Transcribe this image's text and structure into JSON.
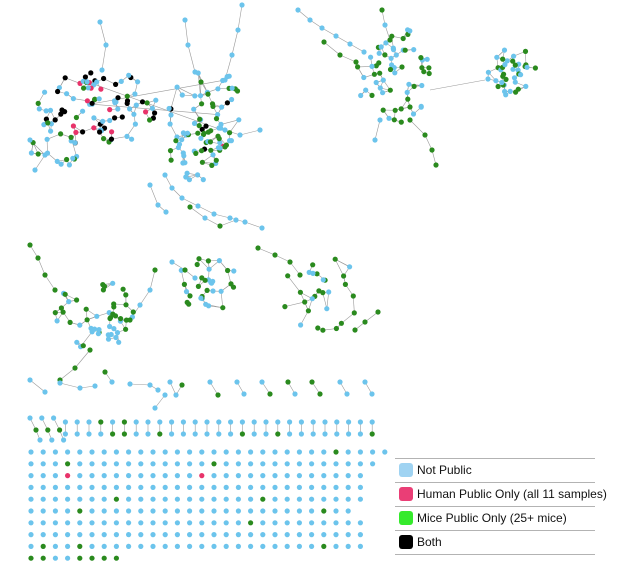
{
  "colors": {
    "not_public": "#6cc4ec",
    "human": "#e8336a",
    "mice": "#2a8a1e",
    "both": "#000000",
    "edge": "#9a9a9a",
    "legend_not_public": "#9fd3f2",
    "legend_human": "#ea3e76",
    "legend_mice": "#35ea2c",
    "legend_both": "#000000"
  },
  "legend": {
    "items": [
      {
        "label": "Not Public",
        "color_key": "legend_not_public",
        "icon": "light-blue-square"
      },
      {
        "label": "Human Public Only (all 11 samples)",
        "color_key": "legend_human",
        "icon": "pink-square"
      },
      {
        "label": "Mice Public Only (25+ mice)",
        "color_key": "legend_mice",
        "icon": "green-square"
      },
      {
        "label": "Both",
        "color_key": "legend_both",
        "icon": "black-square"
      }
    ]
  },
  "grid_nodes": {
    "rows": [
      "bbbbbbbbbbbbbbbbbbbbbbbbbgbbbb",
      "bbbgbbbbbbbbbbbgbbbbbbbbbbbbb",
      "bbbhbbbbbbbbbbhbbbbbbbbbbbbb",
      "bbbbbbbbbbbbbbbbbbbbbbbbbbbb",
      "bbbbbbbgbbbbbbbbbbbgbbbbbbbb",
      "bbbbgbbbbbbbbbbbbbbbbbbbgbb",
      "bbbbbbbbbbbbbbbbbbgbbbbbbbbb",
      "bbbbbbbbbbbbbbbbbbbbbbbbbbbb",
      "bgbbgbbbbbbbbbbbbbbbbbbbgbbb",
      "ggbbgggg"
    ]
  }
}
